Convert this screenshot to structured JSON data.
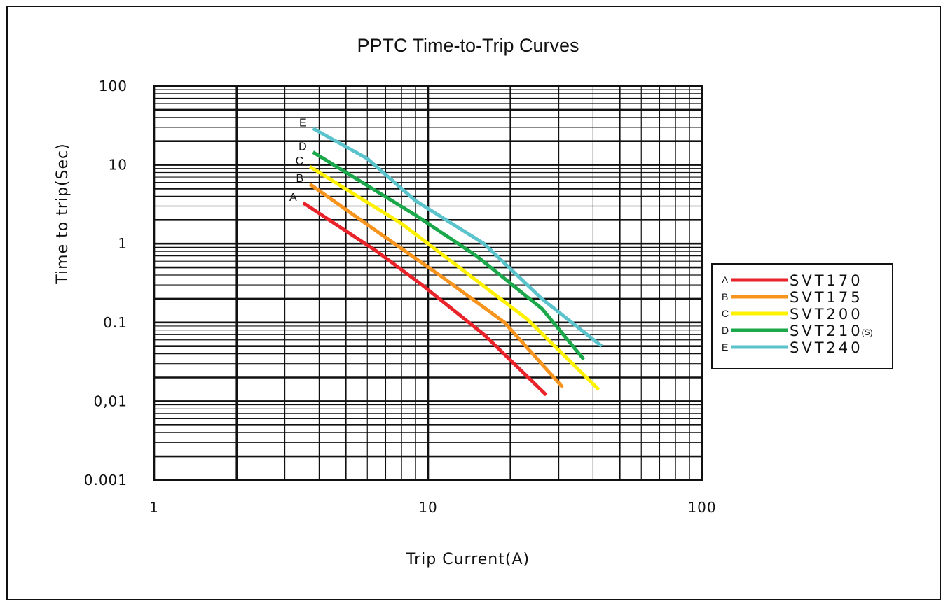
{
  "chart_data": {
    "type": "line",
    "title": "PPTC Time-to-Trip Curves",
    "xlabel": "Trip Current(A)",
    "ylabel": "Time to trip(Sec)",
    "x_scale": "log",
    "y_scale": "log",
    "xlim": [
      1,
      100
    ],
    "ylim": [
      0.001,
      100
    ],
    "x_ticks": [
      "1",
      "10",
      "100"
    ],
    "y_ticks": [
      "0.001",
      "0,01",
      "0.1",
      "1",
      "10",
      "100"
    ],
    "grid": true,
    "legend_position": "right",
    "series": [
      {
        "id": "A",
        "name": "SVT170",
        "suffix": "",
        "curve_label": "A",
        "color": "#e8232a",
        "points": [
          [
            3.5,
            3.3
          ],
          [
            6.5,
            0.8
          ],
          [
            9.5,
            0.3
          ],
          [
            16,
            0.07
          ],
          [
            27,
            0.012
          ]
        ]
      },
      {
        "id": "B",
        "name": "SVT175",
        "suffix": "",
        "curve_label": "B",
        "color": "#f7941d",
        "points": [
          [
            3.7,
            5.7
          ],
          [
            7,
            1.2
          ],
          [
            11,
            0.4
          ],
          [
            19,
            0.1
          ],
          [
            31,
            0.015
          ]
        ]
      },
      {
        "id": "C",
        "name": "SVT200",
        "suffix": "",
        "curve_label": "C",
        "color": "#fff200",
        "points": [
          [
            3.7,
            9.5
          ],
          [
            8,
            1.8
          ],
          [
            13,
            0.5
          ],
          [
            23,
            0.11
          ],
          [
            42,
            0.014
          ]
        ]
      },
      {
        "id": "D",
        "name": "SVT210",
        "suffix": "(S)",
        "curve_label": "D",
        "color": "#1aa84a",
        "points": [
          [
            3.8,
            14.5
          ],
          [
            9,
            2.3
          ],
          [
            15,
            0.7
          ],
          [
            26,
            0.15
          ],
          [
            37,
            0.034
          ]
        ]
      },
      {
        "id": "E",
        "name": "SVT240",
        "suffix": "",
        "curve_label": "E",
        "color": "#5bc3cc",
        "points": [
          [
            3.8,
            29
          ],
          [
            6,
            12
          ],
          [
            9,
            3.5
          ],
          [
            16,
            1.0
          ],
          [
            26,
            0.2
          ],
          [
            43,
            0.05
          ]
        ]
      }
    ]
  }
}
